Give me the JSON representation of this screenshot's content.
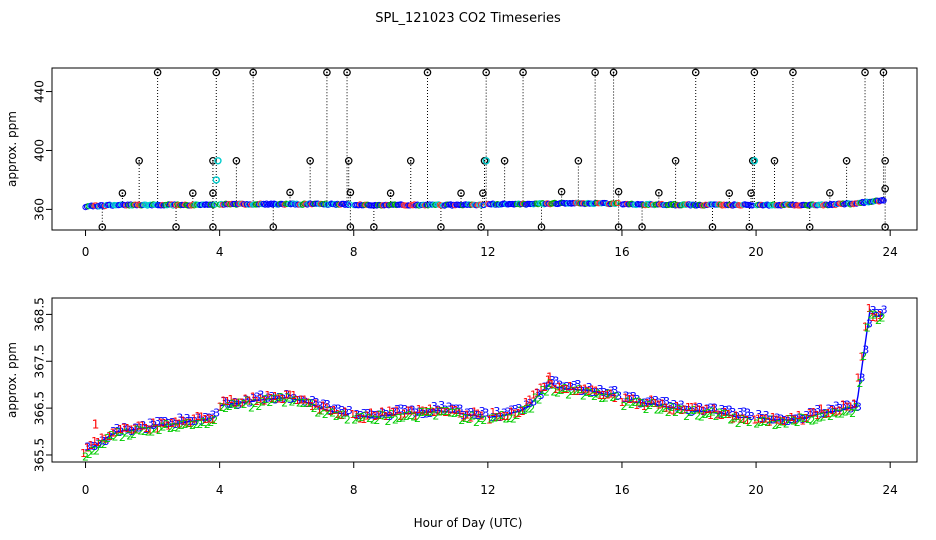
{
  "chart_data": [
    {
      "type": "scatter",
      "title": "SPL_121023  CO2 Timeseries",
      "xlabel": "",
      "ylabel": "approx. ppm",
      "xlim": [
        -1,
        24.8
      ],
      "ylim": [
        346,
        456
      ],
      "x_ticks": [
        0,
        4,
        8,
        12,
        16,
        20,
        24
      ],
      "x_tick_labels": [
        "0",
        "4",
        "8",
        "12",
        "16",
        "20",
        "24"
      ],
      "y_ticks": [
        360,
        400,
        440
      ],
      "y_tick_labels": [
        "360",
        "400",
        "440"
      ],
      "legend": "none",
      "series_colors": {
        "high": "#000000",
        "low": "#000000",
        "mean": "#0000ff",
        "aux": "#00cccc"
      },
      "spike_high_value": 453,
      "spike_low_value": 348,
      "spike_high_times": [
        2.15,
        3.9,
        5.0,
        7.2,
        7.8,
        10.2,
        11.95,
        13.05,
        15.2,
        15.75,
        18.2,
        19.95,
        21.1,
        23.25,
        23.8
      ],
      "spike_mid_value": 393,
      "spike_mid_times": [
        1.6,
        3.8,
        4.5,
        6.7,
        7.85,
        9.7,
        11.9,
        12.5,
        14.7,
        17.6,
        19.9,
        20.55,
        22.7,
        23.85
      ],
      "spike_low_times": [
        0.5,
        2.7,
        3.8,
        5.6,
        7.9,
        8.6,
        10.6,
        11.8,
        13.6,
        15.9,
        16.6,
        18.7,
        19.8,
        21.6,
        23.85
      ],
      "spike_small_times": [
        1.1,
        3.2,
        3.8,
        6.1,
        7.9,
        9.1,
        11.2,
        11.85,
        14.2,
        15.9,
        17.1,
        19.2,
        19.85,
        22.2,
        23.85
      ],
      "aux_points": [
        {
          "x": 3.95,
          "y": 393
        },
        {
          "x": 3.9,
          "y": 380
        },
        {
          "x": 11.95,
          "y": 393
        },
        {
          "x": 19.95,
          "y": 393
        }
      ],
      "mean_series": {
        "x": [
          0,
          0.5,
          1,
          2,
          3,
          3.9,
          4,
          6,
          7.9,
          8,
          10,
          11.9,
          12,
          13,
          14,
          15,
          15.9,
          16,
          18,
          19.9,
          20,
          22,
          23,
          23.3,
          23.8
        ],
        "y": [
          362,
          362.5,
          363,
          363,
          363,
          363,
          363.5,
          363.5,
          363.5,
          363,
          363,
          363,
          363.5,
          363.5,
          364,
          364,
          364,
          363.5,
          363,
          363,
          363,
          363,
          364,
          365,
          366
        ]
      },
      "gaps": [
        [
          3.9,
          4.0
        ],
        [
          7.9,
          8.0
        ],
        [
          11.9,
          12.0
        ],
        [
          15.9,
          16.0
        ],
        [
          19.9,
          20.0
        ]
      ]
    },
    {
      "type": "scatter",
      "title": "",
      "xlabel": "Hour of Day (UTC)",
      "ylabel": "approx. ppm",
      "xlim": [
        -1,
        24.8
      ],
      "ylim": [
        365.35,
        368.85
      ],
      "x_ticks": [
        0,
        4,
        8,
        12,
        16,
        20,
        24
      ],
      "x_tick_labels": [
        "0",
        "4",
        "8",
        "12",
        "16",
        "20",
        "24"
      ],
      "y_ticks": [
        365.5,
        366.5,
        367.5,
        368.5
      ],
      "y_tick_labels": [
        "365.5",
        "366.5",
        "367.5",
        "368.5"
      ],
      "legend": "none",
      "marker_labels": [
        "1",
        "2",
        "3"
      ],
      "series_colors": {
        "s1": "#ff0000",
        "s2": "#00cc00",
        "s3": "#0000ff",
        "line": "#0000ff"
      },
      "mean_series": {
        "x": [
          0,
          0.2,
          0.5,
          0.8,
          1,
          1.5,
          2,
          2.5,
          3,
          3.5,
          3.9,
          4,
          4.5,
          5,
          5.5,
          6,
          6.5,
          7,
          7.5,
          7.9,
          8,
          8.5,
          9,
          9.5,
          10,
          10.5,
          11,
          11.5,
          11.9,
          12,
          12.5,
          13,
          13.3,
          13.6,
          13.9,
          14,
          14.5,
          15,
          15.5,
          15.9,
          16,
          16.5,
          17,
          17.5,
          18,
          18.5,
          19,
          19.5,
          19.9,
          20,
          20.5,
          21,
          21.5,
          22,
          22.5,
          22.8,
          23,
          23.2,
          23.4,
          23.6,
          23.8
        ],
        "y": [
          365.6,
          365.65,
          365.8,
          365.95,
          366.0,
          366.05,
          366.1,
          366.15,
          366.2,
          366.25,
          366.3,
          366.55,
          366.6,
          366.65,
          366.7,
          366.72,
          366.65,
          366.5,
          366.4,
          366.35,
          366.35,
          366.3,
          366.35,
          366.38,
          366.4,
          366.45,
          366.4,
          366.35,
          366.3,
          366.3,
          366.35,
          366.45,
          366.6,
          366.85,
          367.05,
          366.95,
          366.9,
          366.88,
          366.8,
          366.75,
          366.65,
          366.62,
          366.58,
          366.5,
          366.45,
          366.42,
          366.38,
          366.3,
          366.3,
          366.3,
          366.25,
          366.25,
          366.3,
          366.4,
          366.45,
          366.5,
          366.55,
          367.6,
          368.6,
          368.45,
          368.5
        ]
      },
      "outliers": [
        {
          "x": 0.3,
          "y": 366.15,
          "label": "1"
        },
        {
          "x": 13.85,
          "y": 367.15,
          "label": "1"
        }
      ],
      "gaps": [
        [
          3.9,
          4.0
        ],
        [
          7.9,
          8.0
        ],
        [
          11.9,
          12.0
        ],
        [
          15.9,
          16.0
        ],
        [
          19.9,
          20.0
        ]
      ]
    }
  ]
}
